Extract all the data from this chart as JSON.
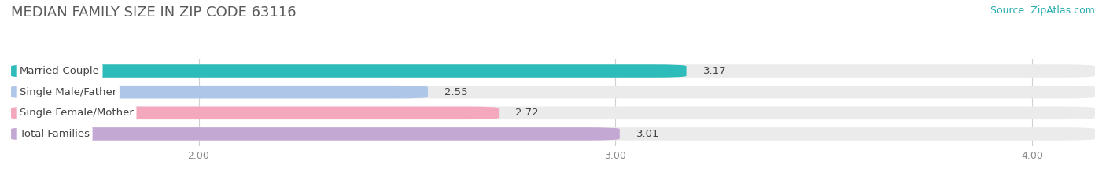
{
  "title": "MEDIAN FAMILY SIZE IN ZIP CODE 63116",
  "source": "Source: ZipAtlas.com",
  "categories": [
    "Married-Couple",
    "Single Male/Father",
    "Single Female/Mother",
    "Total Families"
  ],
  "values": [
    3.17,
    2.55,
    2.72,
    3.01
  ],
  "bar_colors": [
    "#2dbcba",
    "#aec6e8",
    "#f4a8be",
    "#c4a8d4"
  ],
  "xlim_min": 1.55,
  "xlim_max": 4.15,
  "xticks": [
    2.0,
    3.0,
    4.0
  ],
  "xtick_labels": [
    "2.00",
    "3.00",
    "4.00"
  ],
  "bar_height": 0.62,
  "background_color": "#ffffff",
  "bar_bg_color": "#ebebeb",
  "title_fontsize": 13,
  "source_fontsize": 9,
  "label_fontsize": 9.5,
  "value_fontsize": 9.5,
  "tick_fontsize": 9,
  "title_color": "#5a5a5a",
  "source_color": "#2aacb0",
  "label_color": "#444444",
  "value_color": "#444444",
  "tick_color": "#888888",
  "grid_color": "#d0d0d0"
}
